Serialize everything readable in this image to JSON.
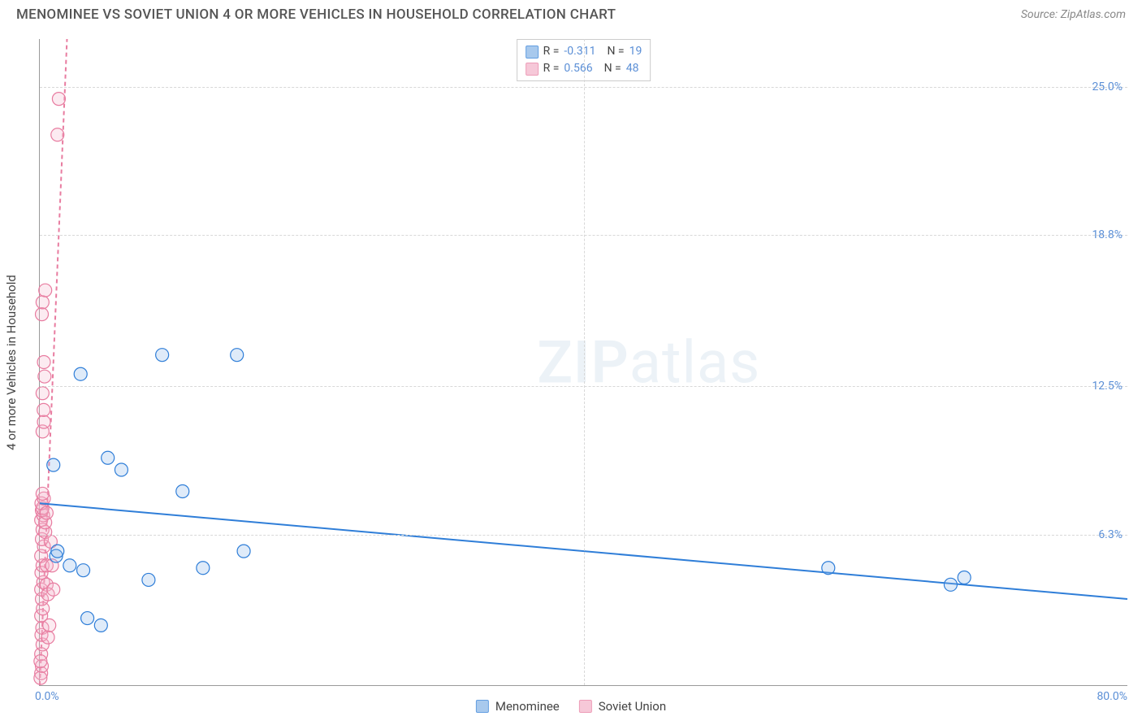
{
  "header": {
    "title": "MENOMINEE VS SOVIET UNION 4 OR MORE VEHICLES IN HOUSEHOLD CORRELATION CHART",
    "source": "Source: ZipAtlas.com"
  },
  "watermark": {
    "zip": "ZIP",
    "atlas": "atlas"
  },
  "chart": {
    "type": "scatter",
    "yaxis_title": "4 or more Vehicles in Household",
    "xlim": [
      0,
      80
    ],
    "ylim": [
      0,
      27
    ],
    "yticks": [
      {
        "v": 6.3,
        "label": "6.3%"
      },
      {
        "v": 12.5,
        "label": "12.5%"
      },
      {
        "v": 18.8,
        "label": "18.8%"
      },
      {
        "v": 25.0,
        "label": "25.0%"
      }
    ],
    "xticks": [
      {
        "v": 0,
        "label": "0.0%",
        "pos": "start"
      },
      {
        "v": 40,
        "label": "",
        "pos": "mid"
      },
      {
        "v": 80,
        "label": "80.0%",
        "pos": "end"
      }
    ],
    "xgrid_at": [
      40
    ],
    "background_color": "#ffffff",
    "grid_color": "#d8d8d8",
    "axis_color": "#999999",
    "label_color": "#5b8fd6",
    "marker_radius": 8,
    "marker_stroke_width": 1.2,
    "marker_fill_opacity": 0.28,
    "trend_stroke_width": 2,
    "series": {
      "menominee": {
        "label": "Menominee",
        "color_stroke": "#2f7ed8",
        "color_fill": "#8bb8e8",
        "R": "-0.311",
        "N": "19",
        "points": [
          [
            1.2,
            5.4
          ],
          [
            1.3,
            5.6
          ],
          [
            1.0,
            9.2
          ],
          [
            2.2,
            5.0
          ],
          [
            3.2,
            4.8
          ],
          [
            3.0,
            13.0
          ],
          [
            3.5,
            2.8
          ],
          [
            4.5,
            2.5
          ],
          [
            5.0,
            9.5
          ],
          [
            6.0,
            9.0
          ],
          [
            8.0,
            4.4
          ],
          [
            9.0,
            13.8
          ],
          [
            10.5,
            8.1
          ],
          [
            12.0,
            4.9
          ],
          [
            14.5,
            13.8
          ],
          [
            15.0,
            5.6
          ],
          [
            58.0,
            4.9
          ],
          [
            67.0,
            4.2
          ],
          [
            68.0,
            4.5
          ]
        ],
        "trend": {
          "x1": 0,
          "y1": 7.6,
          "x2": 80,
          "y2": 3.6
        }
      },
      "soviet": {
        "label": "Soviet Union",
        "color_stroke": "#e87ca0",
        "color_fill": "#f4b6cc",
        "R": "0.566",
        "N": "48",
        "points": [
          [
            0.1,
            0.5
          ],
          [
            0.15,
            0.8
          ],
          [
            0.1,
            1.3
          ],
          [
            0.2,
            1.7
          ],
          [
            0.12,
            2.1
          ],
          [
            0.18,
            2.4
          ],
          [
            0.1,
            2.9
          ],
          [
            0.22,
            3.2
          ],
          [
            0.15,
            3.6
          ],
          [
            0.1,
            4.0
          ],
          [
            0.25,
            4.3
          ],
          [
            0.12,
            4.7
          ],
          [
            0.2,
            5.0
          ],
          [
            0.1,
            5.4
          ],
          [
            0.3,
            5.8
          ],
          [
            0.15,
            6.1
          ],
          [
            0.2,
            6.5
          ],
          [
            0.1,
            6.9
          ],
          [
            0.25,
            7.1
          ],
          [
            0.15,
            7.3
          ],
          [
            0.2,
            7.4
          ],
          [
            0.12,
            7.6
          ],
          [
            0.3,
            7.8
          ],
          [
            0.2,
            8.0
          ],
          [
            0.4,
            6.4
          ],
          [
            0.4,
            6.8
          ],
          [
            0.5,
            7.2
          ],
          [
            0.5,
            5.0
          ],
          [
            0.5,
            4.2
          ],
          [
            0.6,
            3.8
          ],
          [
            0.6,
            2.0
          ],
          [
            0.7,
            2.5
          ],
          [
            0.2,
            10.6
          ],
          [
            0.3,
            11.0
          ],
          [
            0.28,
            11.5
          ],
          [
            0.2,
            12.2
          ],
          [
            0.35,
            12.9
          ],
          [
            0.3,
            13.5
          ],
          [
            0.15,
            15.5
          ],
          [
            0.2,
            16.0
          ],
          [
            0.4,
            16.5
          ],
          [
            0.8,
            6.0
          ],
          [
            0.9,
            5.0
          ],
          [
            1.0,
            4.0
          ],
          [
            1.3,
            23.0
          ],
          [
            1.4,
            24.5
          ],
          [
            0.05,
            1.0
          ],
          [
            0.05,
            0.3
          ]
        ],
        "trend": {
          "x1": 0.0,
          "y1": 0.0,
          "x2": 2.0,
          "y2": 27.0,
          "dashed": true
        }
      }
    }
  }
}
